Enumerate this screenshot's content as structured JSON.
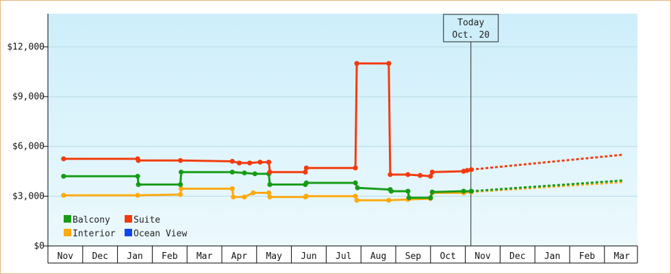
{
  "chart_data": {
    "type": "line",
    "title": "",
    "xlabel": "",
    "ylabel": "",
    "ylim": [
      0,
      14000
    ],
    "y_ticks": [
      0,
      3000,
      6000,
      9000,
      12000
    ],
    "y_tick_labels": [
      "$0",
      "$3,000",
      "$6,000",
      "$9,000",
      "$12,000"
    ],
    "months": [
      "Nov",
      "Dec",
      "Jan",
      "Feb",
      "Mar",
      "Apr",
      "May",
      "Jun",
      "Jul",
      "Aug",
      "Sep",
      "Oct",
      "Nov",
      "Dec",
      "Jan",
      "Feb",
      "Mar"
    ],
    "x_unit": "month index (0 = Nov, 11 = Oct, 16 = Mar)",
    "today_marker": {
      "line1": "Today",
      "line2": "Oct. 20",
      "x": 11.66
    },
    "background": {
      "top_color": "#cdeefa",
      "bottom_color": "#ecf9fd"
    },
    "legend": {
      "placement": "bottom-left"
    },
    "series": [
      {
        "name": "Balcony",
        "color": "#169c16",
        "points": [
          [
            -0.05,
            4200
          ],
          [
            2.08,
            4200
          ],
          [
            2.1,
            3700
          ],
          [
            3.31,
            3700
          ],
          [
            3.33,
            4450
          ],
          [
            4.8,
            4450
          ],
          [
            5.15,
            4400
          ],
          [
            5.45,
            4350
          ],
          [
            5.85,
            4350
          ],
          [
            5.88,
            3700
          ],
          [
            6.9,
            3700
          ],
          [
            6.93,
            3800
          ],
          [
            8.34,
            3800
          ],
          [
            8.4,
            3500
          ],
          [
            9.34,
            3400
          ],
          [
            9.37,
            3300
          ],
          [
            9.85,
            3300
          ],
          [
            9.88,
            2900
          ],
          [
            10.5,
            2900
          ],
          [
            10.55,
            3250
          ],
          [
            11.45,
            3300
          ],
          [
            11.67,
            3300
          ]
        ],
        "forecast": [
          [
            11.67,
            3300
          ],
          [
            16.05,
            3950
          ]
        ]
      },
      {
        "name": "Suite",
        "color": "#f33a0c",
        "points": [
          [
            -0.05,
            5250
          ],
          [
            2.08,
            5250
          ],
          [
            2.1,
            5150
          ],
          [
            3.31,
            5150
          ],
          [
            4.8,
            5100
          ],
          [
            5.0,
            5000
          ],
          [
            5.3,
            5000
          ],
          [
            5.6,
            5050
          ],
          [
            5.85,
            5050
          ],
          [
            5.88,
            4450
          ],
          [
            6.9,
            4450
          ],
          [
            6.93,
            4700
          ],
          [
            8.34,
            4700
          ],
          [
            8.38,
            11000
          ],
          [
            9.3,
            11000
          ],
          [
            9.34,
            4300
          ],
          [
            9.85,
            4300
          ],
          [
            10.2,
            4250
          ],
          [
            10.5,
            4200
          ],
          [
            10.55,
            4450
          ],
          [
            11.45,
            4500
          ],
          [
            11.55,
            4550
          ],
          [
            11.67,
            4600
          ]
        ],
        "forecast": [
          [
            11.67,
            4600
          ],
          [
            16.05,
            5500
          ]
        ]
      },
      {
        "name": "Interior",
        "color": "#ffaa11",
        "points": [
          [
            -0.05,
            3050
          ],
          [
            2.08,
            3050
          ],
          [
            3.31,
            3100
          ],
          [
            3.33,
            3450
          ],
          [
            4.8,
            3450
          ],
          [
            4.83,
            2950
          ],
          [
            5.15,
            2950
          ],
          [
            5.4,
            3200
          ],
          [
            5.85,
            3200
          ],
          [
            5.88,
            2950
          ],
          [
            6.9,
            2950
          ],
          [
            6.93,
            3000
          ],
          [
            8.34,
            3000
          ],
          [
            8.38,
            2750
          ],
          [
            9.3,
            2750
          ],
          [
            9.85,
            2800
          ],
          [
            10.5,
            2850
          ],
          [
            10.55,
            3200
          ],
          [
            11.45,
            3200
          ],
          [
            11.67,
            3250
          ]
        ],
        "forecast": [
          [
            11.67,
            3250
          ],
          [
            16.05,
            3850
          ]
        ]
      },
      {
        "name": "Ocean View",
        "color": "#1144ee",
        "points": [],
        "forecast": []
      }
    ]
  }
}
